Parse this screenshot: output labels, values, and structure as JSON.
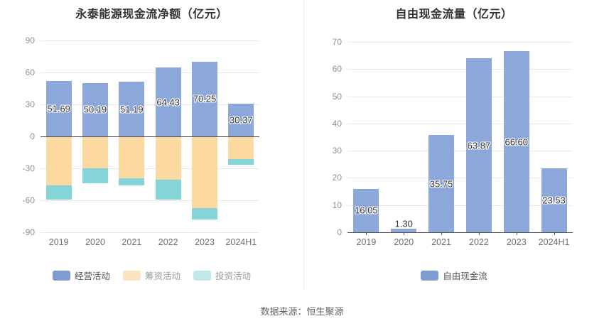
{
  "footer": {
    "text": "数据来源：恒生聚源"
  },
  "chart_data": [
    {
      "type": "bar",
      "stacked": true,
      "title": "永泰能源现金流净额（亿元）",
      "categories": [
        "2019",
        "2020",
        "2021",
        "2022",
        "2023",
        "2024H1"
      ],
      "series": [
        {
          "name": "经营活动",
          "color": "#8ca7da",
          "legend_color": "#7e9cd0",
          "values": [
            51.69,
            50.19,
            51.19,
            64.43,
            70.25,
            30.37
          ],
          "value_labels": [
            "51.69",
            "50.19",
            "51.19",
            "64.43",
            "70.25",
            "30.37"
          ]
        },
        {
          "name": "筹资活动",
          "color": "#fbd9a0",
          "legend_color": "#fbe5c1",
          "values": [
            -46.0,
            -30.3,
            -39.1,
            -40.7,
            -67.5,
            -21.3
          ],
          "estimated_from_gridlines": true
        },
        {
          "name": "投资活动",
          "color": "#85d5d8",
          "legend_color": "#c3e8e9",
          "values": [
            -13.5,
            -13.7,
            -6.7,
            -18.5,
            -10.5,
            -5.5
          ],
          "estimated_from_gridlines": true
        }
      ],
      "xlabel": "",
      "ylabel": "",
      "ylim": [
        -90,
        90
      ],
      "yticks": [
        90,
        60,
        30,
        0,
        -30,
        -60,
        -90
      ],
      "grid": true,
      "legend_position": "bottom"
    },
    {
      "type": "bar",
      "stacked": false,
      "title": "自由现金流量（亿元）",
      "categories": [
        "2019",
        "2020",
        "2021",
        "2022",
        "2023",
        "2024H1"
      ],
      "series": [
        {
          "name": "自由现金流",
          "color": "#8ca7da",
          "legend_color": "#7e9cd0",
          "values": [
            16.05,
            1.3,
            35.75,
            63.87,
            66.6,
            23.53
          ],
          "value_labels": [
            "16.05",
            "1.30",
            "35.75",
            "63.87",
            "66.60",
            "23.53"
          ]
        }
      ],
      "xlabel": "",
      "ylabel": "",
      "ylim": [
        0,
        70
      ],
      "yticks": [
        70,
        60,
        50,
        40,
        30,
        20,
        10,
        0
      ],
      "grid": true,
      "legend_position": "bottom"
    }
  ]
}
